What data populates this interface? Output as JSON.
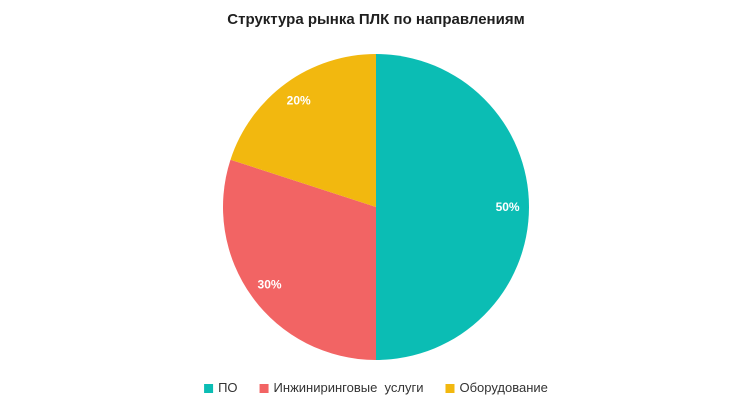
{
  "chart_data": {
    "type": "pie",
    "title": "Структура рынка ПЛК по направлениям",
    "categories": [
      "ПО",
      "Инжиниринговые  услуги",
      "Оборудование"
    ],
    "values": [
      50,
      30,
      20
    ],
    "labels": [
      "50%",
      "30%",
      "20%"
    ],
    "colors": [
      "#0bbdb4",
      "#f26464",
      "#f2b80f"
    ],
    "legend_position": "bottom",
    "start_angle_deg": 0,
    "direction": "clockwise"
  }
}
